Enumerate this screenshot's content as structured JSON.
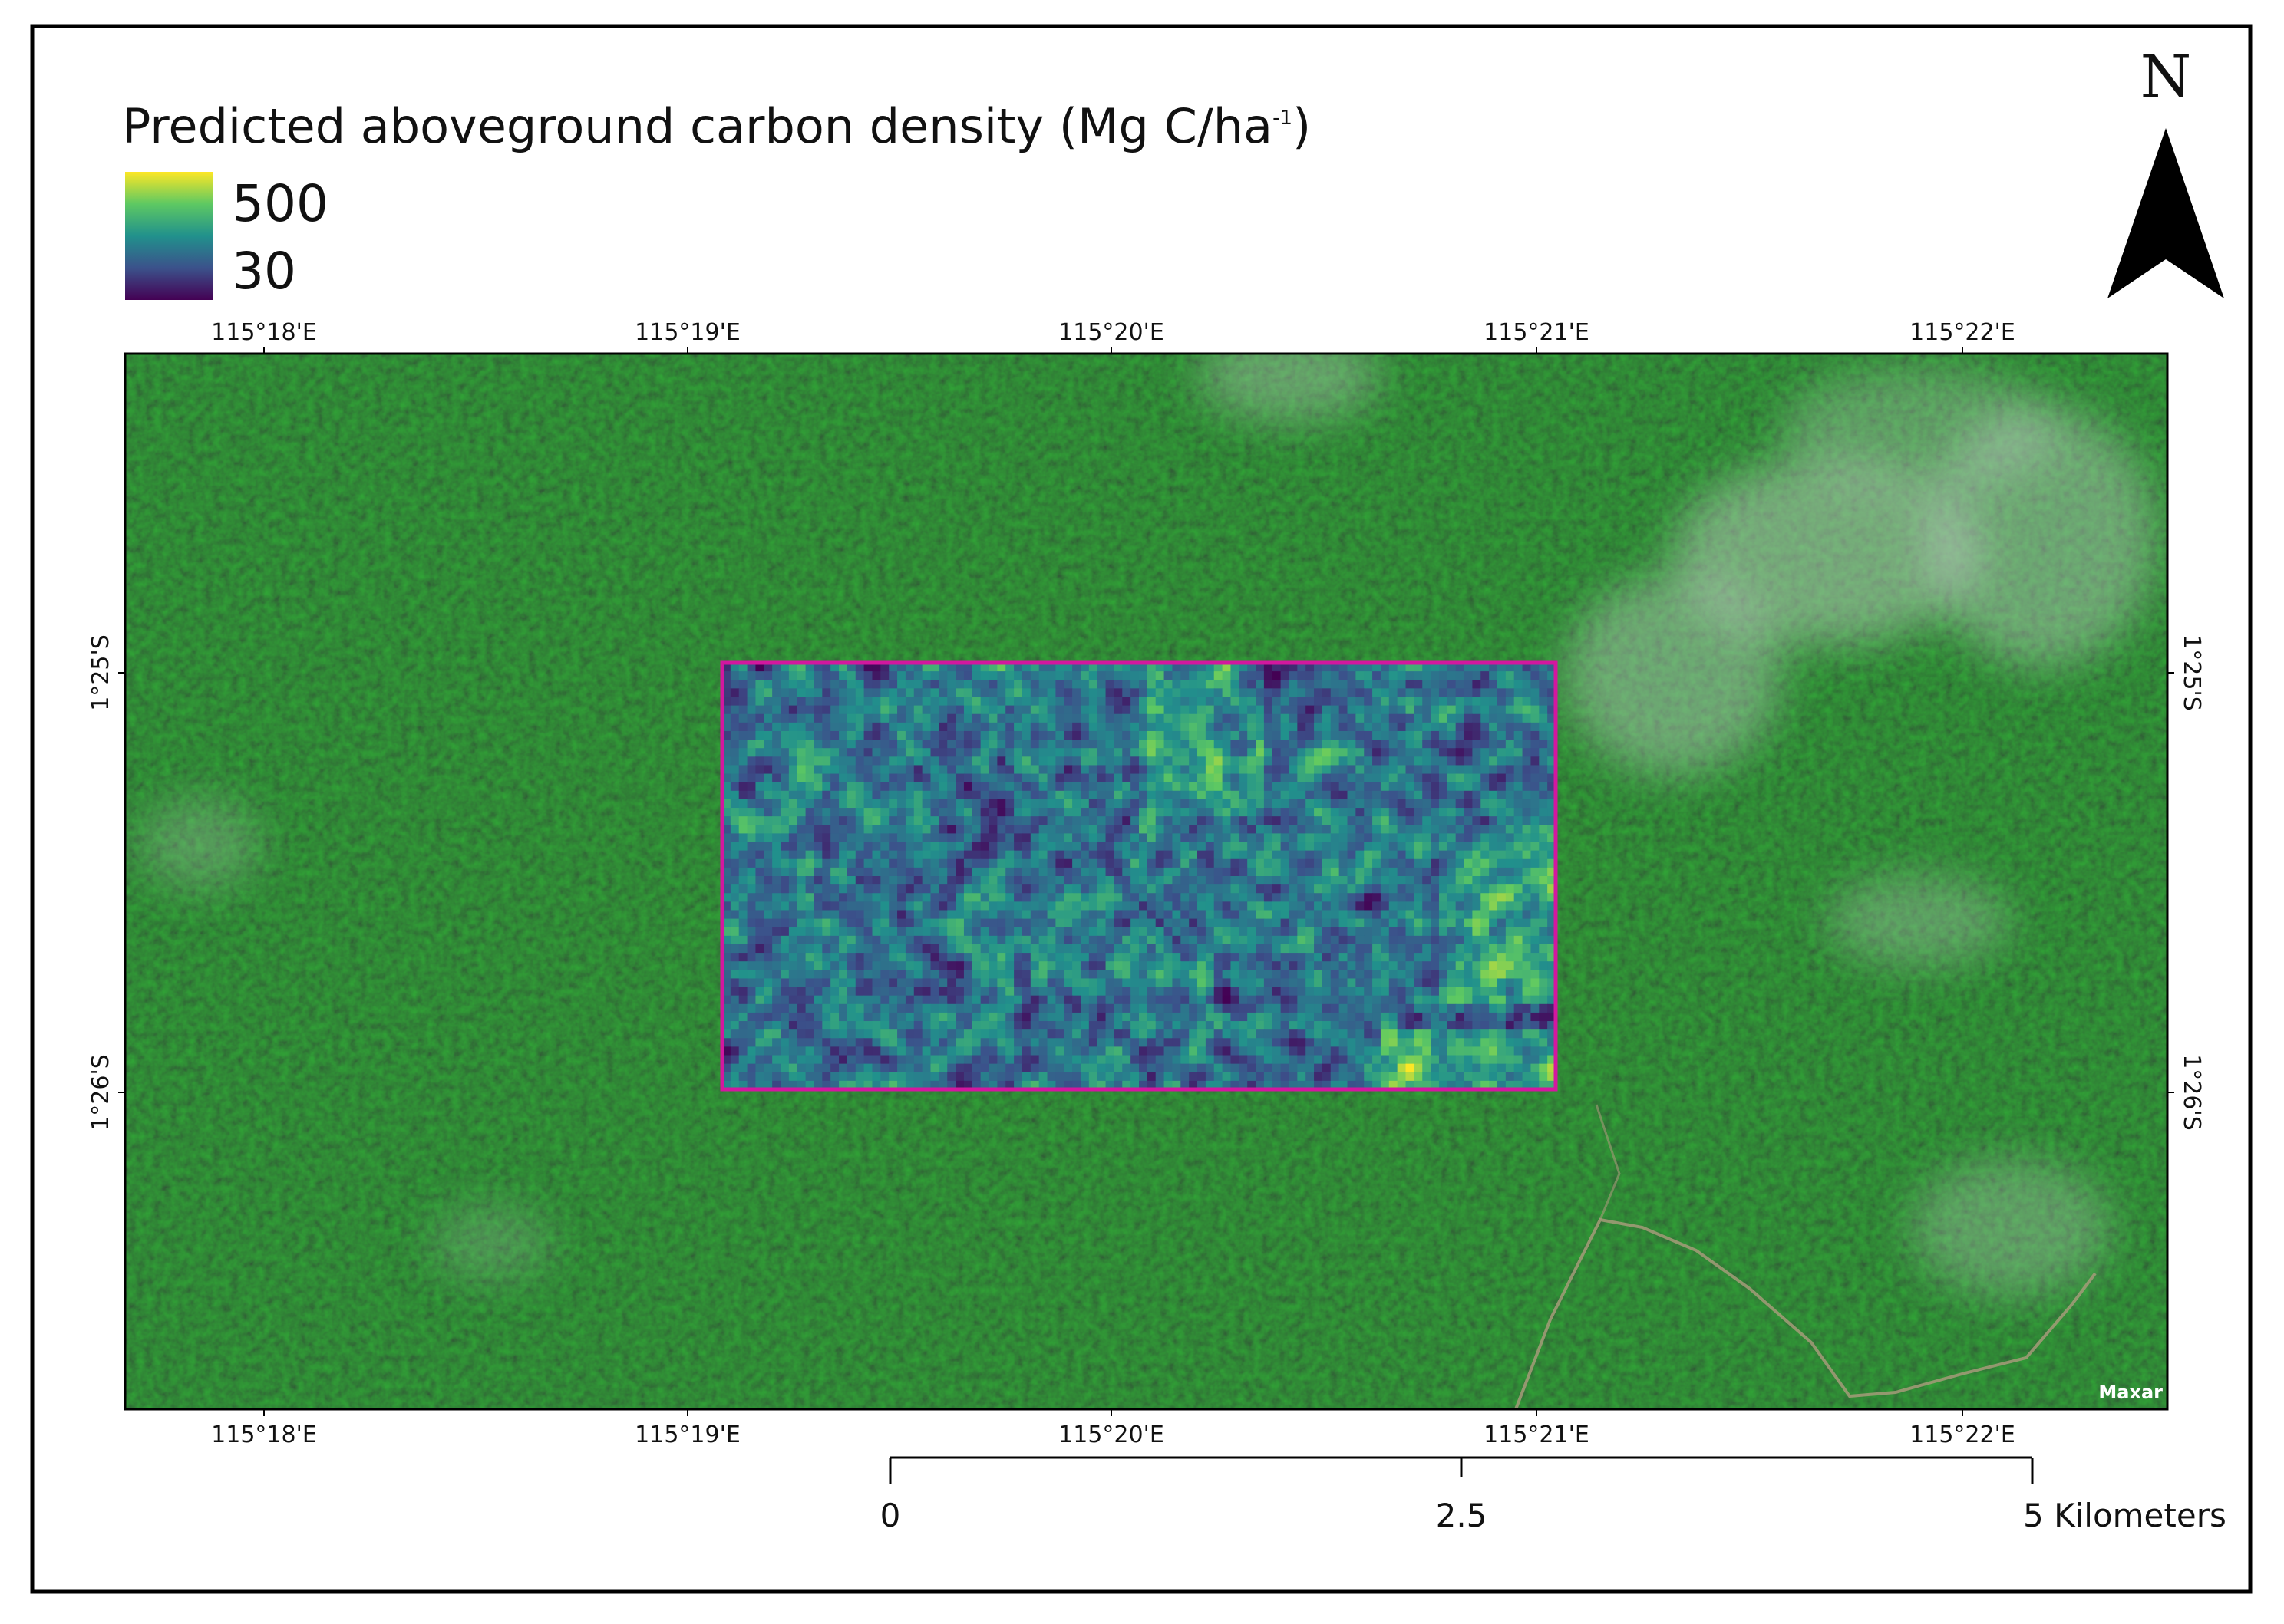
{
  "title": {
    "text": "Predicted aboveground carbon density (Mg C/ha",
    "superscript": "-1",
    "closing": ")"
  },
  "legend": {
    "max": 500,
    "min": 30
  },
  "longitudes": [
    "115°18'E",
    "115°19'E",
    "115°20'E",
    "115°21'E",
    "115°22'E"
  ],
  "latitudes": [
    "1°25'S",
    "1°26'S"
  ],
  "north_arrow": "N",
  "scale_bar": [
    "0",
    "2.5",
    "5 Kilometers"
  ],
  "attribution": "Maxar"
}
